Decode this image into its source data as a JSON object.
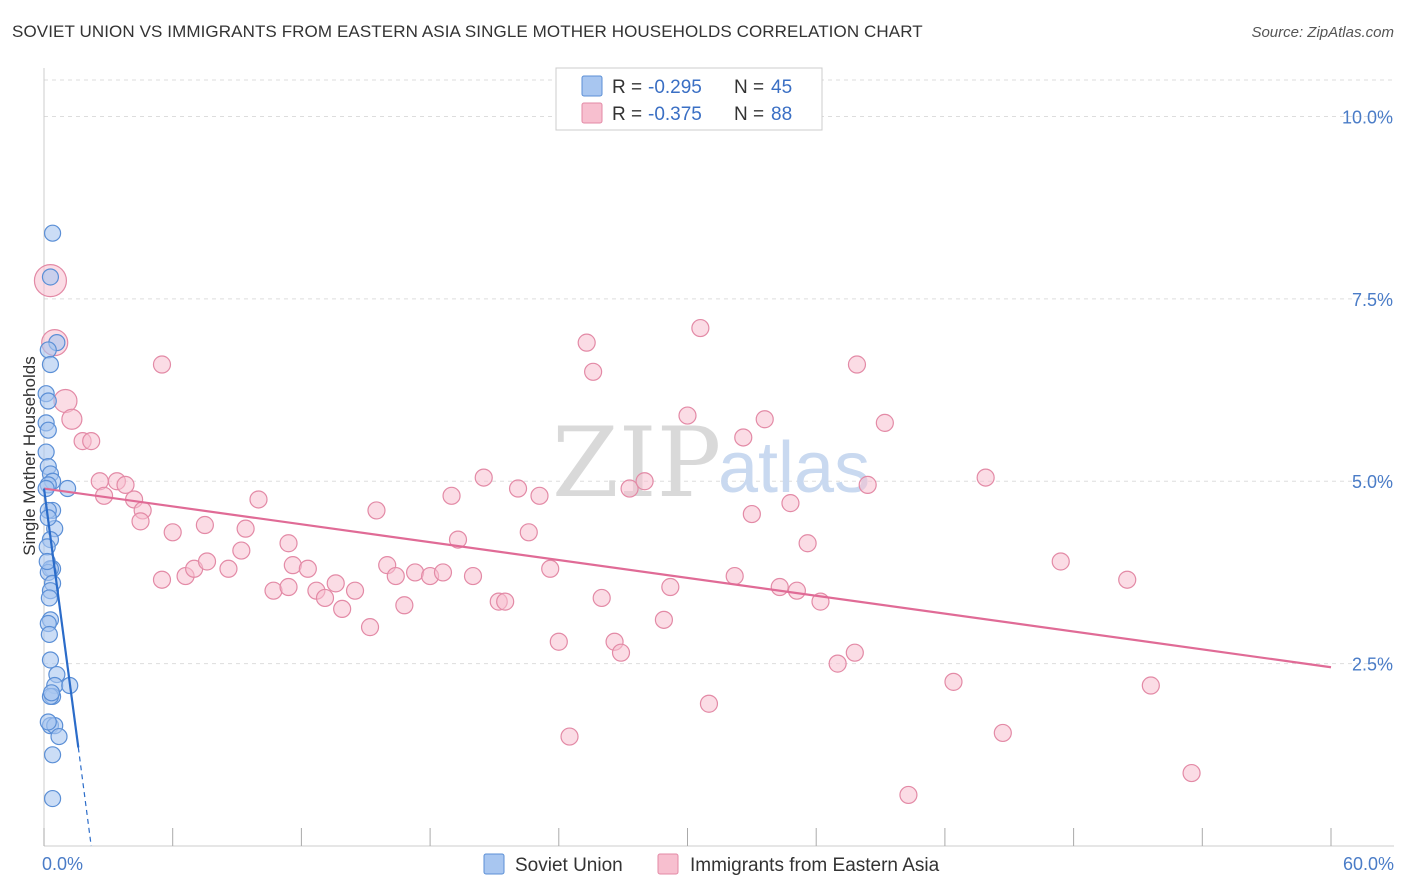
{
  "title": "SOVIET UNION VS IMMIGRANTS FROM EASTERN ASIA SINGLE MOTHER HOUSEHOLDS CORRELATION CHART",
  "source": "Source: ZipAtlas.com",
  "watermark": {
    "zip": "ZIP",
    "atlas": "atlas"
  },
  "colors": {
    "soviet_fill": "#a8c6f0",
    "soviet_stroke": "#5b8fd6",
    "soviet_line": "#2b6cc9",
    "asia_fill": "#f7bfcf",
    "asia_stroke": "#e38aa6",
    "asia_line": "#e06b96",
    "grid": "#dddddd",
    "axis_text": "#4a7cc7"
  },
  "legend": {
    "rows": [
      {
        "r_label": "R = ",
        "r_value": "-0.295",
        "n_label": "N = ",
        "n_value": "45"
      },
      {
        "r_label": "R = ",
        "r_value": "-0.375",
        "n_label": "N = ",
        "n_value": "88"
      }
    ]
  },
  "chart_data": {
    "type": "scatter",
    "title": "SOVIET UNION VS IMMIGRANTS FROM EASTERN ASIA SINGLE MOTHER HOUSEHOLDS CORRELATION CHART",
    "xlabel": "",
    "ylabel": "Single Mother Households",
    "xlim": [
      0,
      60
    ],
    "ylim": [
      0,
      10.5
    ],
    "x_tick_labels": [
      "0.0%",
      "60.0%"
    ],
    "y_ticks": [
      2.5,
      5.0,
      7.5,
      10.0
    ],
    "y_tick_labels": [
      "2.5%",
      "5.0%",
      "7.5%",
      "10.0%"
    ],
    "grid": true,
    "legend_position": "bottom",
    "series": [
      {
        "name": "Soviet Union",
        "r": -0.295,
        "n": 45,
        "points": [
          [
            0.4,
            8.4
          ],
          [
            0.3,
            7.8
          ],
          [
            0.6,
            6.9
          ],
          [
            0.2,
            6.8
          ],
          [
            0.3,
            6.6
          ],
          [
            0.1,
            6.2
          ],
          [
            0.2,
            6.1
          ],
          [
            0.1,
            5.8
          ],
          [
            0.2,
            5.7
          ],
          [
            0.1,
            5.4
          ],
          [
            0.2,
            5.2
          ],
          [
            0.3,
            5.1
          ],
          [
            0.4,
            5.0
          ],
          [
            0.2,
            4.95
          ],
          [
            0.1,
            4.9
          ],
          [
            1.1,
            4.9
          ],
          [
            0.4,
            4.6
          ],
          [
            0.2,
            4.6
          ],
          [
            0.5,
            4.35
          ],
          [
            0.3,
            4.2
          ],
          [
            0.15,
            4.1
          ],
          [
            0.4,
            3.8
          ],
          [
            0.3,
            3.8
          ],
          [
            0.2,
            3.75
          ],
          [
            0.4,
            3.6
          ],
          [
            0.3,
            3.5
          ],
          [
            0.25,
            3.4
          ],
          [
            0.3,
            3.1
          ],
          [
            0.2,
            3.05
          ],
          [
            0.3,
            2.55
          ],
          [
            0.6,
            2.35
          ],
          [
            0.5,
            2.2
          ],
          [
            1.2,
            2.2
          ],
          [
            0.4,
            2.05
          ],
          [
            0.3,
            2.05
          ],
          [
            0.3,
            1.65
          ],
          [
            0.5,
            1.65
          ],
          [
            0.7,
            1.5
          ],
          [
            0.4,
            1.25
          ],
          [
            0.4,
            0.65
          ],
          [
            0.2,
            4.5
          ],
          [
            0.15,
            3.9
          ],
          [
            0.25,
            2.9
          ],
          [
            0.35,
            2.1
          ],
          [
            0.2,
            1.7
          ]
        ],
        "trend": {
          "x": [
            0.0,
            1.6
          ],
          "y": [
            4.9,
            1.35
          ],
          "dashed_extension": {
            "x": [
              1.6,
              2.2
            ],
            "y": [
              1.35,
              0.0
            ]
          }
        }
      },
      {
        "name": "Immigrants from Eastern Asia",
        "r": -0.375,
        "n": 88,
        "points": [
          [
            0.3,
            7.75
          ],
          [
            0.5,
            6.9
          ],
          [
            1.0,
            6.1
          ],
          [
            1.3,
            5.85
          ],
          [
            1.8,
            5.55
          ],
          [
            2.2,
            5.55
          ],
          [
            5.5,
            6.6
          ],
          [
            2.6,
            5.0
          ],
          [
            3.4,
            5.0
          ],
          [
            3.8,
            4.95
          ],
          [
            2.8,
            4.8
          ],
          [
            4.2,
            4.75
          ],
          [
            4.6,
            4.6
          ],
          [
            4.5,
            4.45
          ],
          [
            6.0,
            4.3
          ],
          [
            7.5,
            4.4
          ],
          [
            5.5,
            3.65
          ],
          [
            6.6,
            3.7
          ],
          [
            7.0,
            3.8
          ],
          [
            7.6,
            3.9
          ],
          [
            8.6,
            3.8
          ],
          [
            9.2,
            4.05
          ],
          [
            10.0,
            4.75
          ],
          [
            9.4,
            4.35
          ],
          [
            11.4,
            4.15
          ],
          [
            10.7,
            3.5
          ],
          [
            11.4,
            3.55
          ],
          [
            11.6,
            3.85
          ],
          [
            12.3,
            3.8
          ],
          [
            12.7,
            3.5
          ],
          [
            13.1,
            3.4
          ],
          [
            13.6,
            3.6
          ],
          [
            13.9,
            3.25
          ],
          [
            14.5,
            3.5
          ],
          [
            15.2,
            3.0
          ],
          [
            15.5,
            4.6
          ],
          [
            16.0,
            3.85
          ],
          [
            16.4,
            3.7
          ],
          [
            16.8,
            3.3
          ],
          [
            17.3,
            3.75
          ],
          [
            18.0,
            3.7
          ],
          [
            18.6,
            3.75
          ],
          [
            19.0,
            4.8
          ],
          [
            19.3,
            4.2
          ],
          [
            20.0,
            3.7
          ],
          [
            20.5,
            5.05
          ],
          [
            21.2,
            3.35
          ],
          [
            21.5,
            3.35
          ],
          [
            22.1,
            4.9
          ],
          [
            22.6,
            4.3
          ],
          [
            23.1,
            4.8
          ],
          [
            23.6,
            3.8
          ],
          [
            24.0,
            2.8
          ],
          [
            24.5,
            1.5
          ],
          [
            25.3,
            6.9
          ],
          [
            25.6,
            6.5
          ],
          [
            26.0,
            3.4
          ],
          [
            26.6,
            2.8
          ],
          [
            26.9,
            2.65
          ],
          [
            27.3,
            4.9
          ],
          [
            28.0,
            5.0
          ],
          [
            28.9,
            3.1
          ],
          [
            29.2,
            3.55
          ],
          [
            30.0,
            5.9
          ],
          [
            30.6,
            7.1
          ],
          [
            31.0,
            1.95
          ],
          [
            32.2,
            3.7
          ],
          [
            32.6,
            5.6
          ],
          [
            33.0,
            4.55
          ],
          [
            33.6,
            5.85
          ],
          [
            34.3,
            3.55
          ],
          [
            34.8,
            4.7
          ],
          [
            35.1,
            3.5
          ],
          [
            35.6,
            4.15
          ],
          [
            36.2,
            3.35
          ],
          [
            37.0,
            2.5
          ],
          [
            37.8,
            2.65
          ],
          [
            37.9,
            6.6
          ],
          [
            38.4,
            4.95
          ],
          [
            39.2,
            5.8
          ],
          [
            40.3,
            0.7
          ],
          [
            42.4,
            2.25
          ],
          [
            43.9,
            5.05
          ],
          [
            44.7,
            1.55
          ],
          [
            47.4,
            3.9
          ],
          [
            50.5,
            3.65
          ],
          [
            51.6,
            2.2
          ],
          [
            53.5,
            1.0
          ]
        ],
        "trend": {
          "x": [
            0.0,
            60.0
          ],
          "y": [
            4.9,
            2.45
          ]
        }
      }
    ]
  }
}
